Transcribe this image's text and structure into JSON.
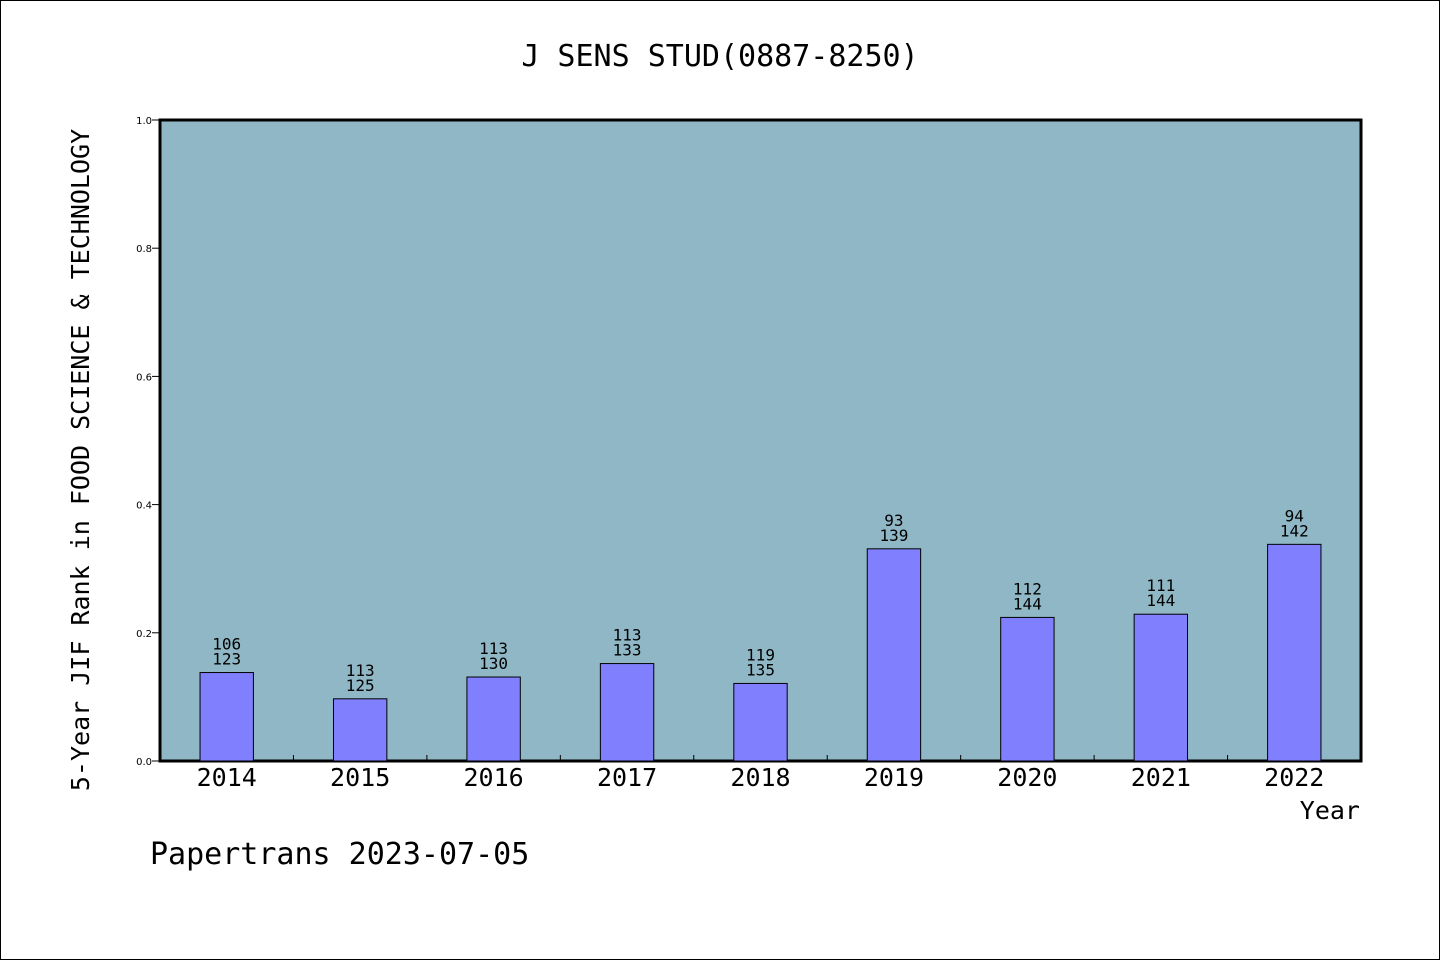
{
  "chart_data": {
    "type": "bar",
    "title": "J SENS STUD(0887-8250)",
    "xlabel": "Year",
    "ylabel": "5-Year JIF Rank in FOOD SCIENCE & TECHNOLOGY",
    "ylim": [
      0,
      1.0
    ],
    "yticks": [
      "0.0",
      "0.2",
      "0.4",
      "0.6",
      "0.8",
      "1.0"
    ],
    "categories": [
      "2014",
      "2015",
      "2016",
      "2017",
      "2018",
      "2019",
      "2020",
      "2021",
      "2022"
    ],
    "values": [
      0.138,
      0.097,
      0.131,
      0.152,
      0.121,
      0.331,
      0.224,
      0.229,
      0.338
    ],
    "rank_labels": [
      "106",
      "113",
      "113",
      "113",
      "119",
      "93",
      "112",
      "111",
      "94"
    ],
    "total_labels": [
      "123",
      "125",
      "130",
      "133",
      "135",
      "139",
      "144",
      "144",
      "142"
    ],
    "grid": false,
    "colors": {
      "plot_background": "#8fb7c5",
      "bar_fill": "#8080ff",
      "bar_stroke": "#000000"
    }
  },
  "footer": {
    "text": "Papertrans 2023-07-05"
  }
}
